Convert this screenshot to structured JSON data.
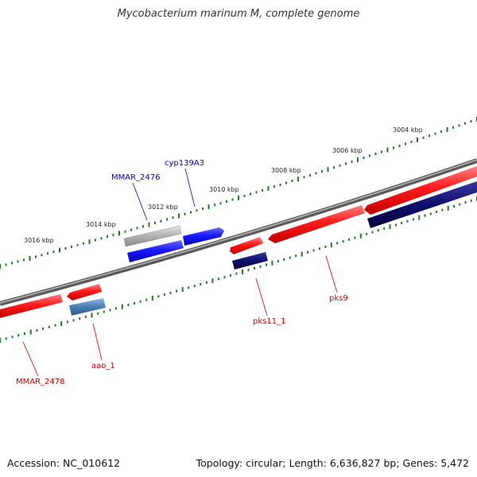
{
  "title": "Mycobacterium marinum M, complete genome",
  "footer": {
    "accession": "Accession: NC_010612",
    "summary": "Topology: circular; Length: 6,636,827 bp; Genes: 5,472"
  },
  "colors": {
    "forward_gene": "#ff1a1a",
    "reverse_gene": "#1a1aff",
    "dark_gene": "#0d0d6e",
    "steel_gene": "#4a7fb5",
    "gray_gene": "#b0b0b0",
    "backbone": "#808080",
    "tick": "#1d7a1d",
    "label_red": "#cc0000",
    "label_blue": "#0000cc"
  },
  "ticks": {
    "outer": [
      "3004 kbp",
      "3006 kbp",
      "3008 kbp",
      "3010 kbp",
      "3012 kbp",
      "3014 kbp",
      "3016 kbp"
    ]
  },
  "genes": [
    {
      "name": "MMAR_2476",
      "color": "label_blue"
    },
    {
      "name": "cyp139A3",
      "color": "label_blue"
    },
    {
      "name": "pks9",
      "color": "label_red"
    },
    {
      "name": "pks11_1",
      "color": "label_red"
    },
    {
      "name": "aao_1",
      "color": "label_red"
    },
    {
      "name": "MMAR_2478",
      "color": "label_red"
    }
  ]
}
